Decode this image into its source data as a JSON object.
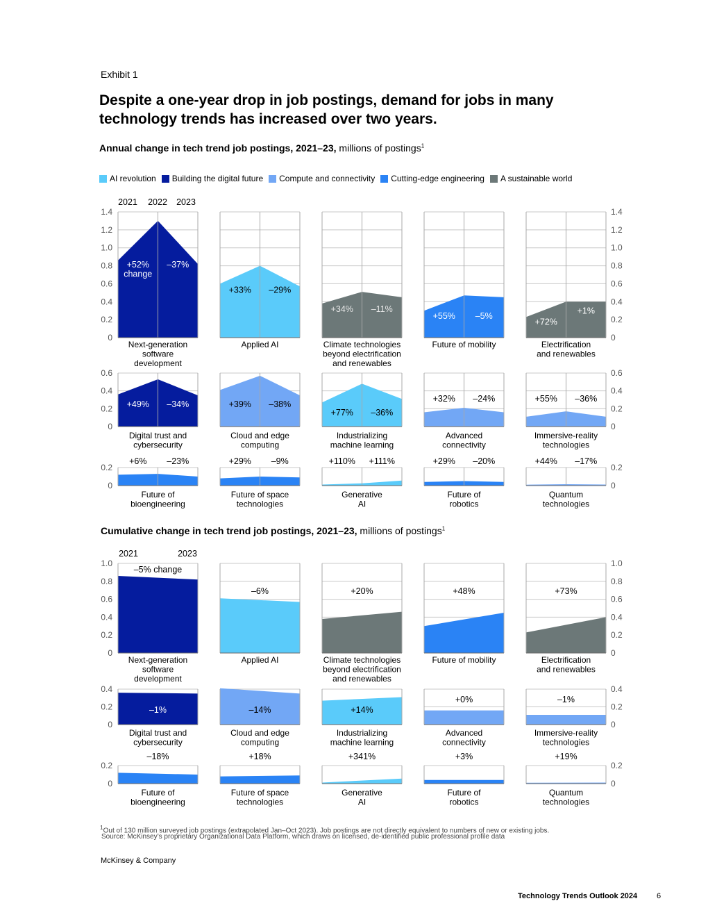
{
  "exhibit_label": "Exhibit 1",
  "headline": "Despite a one-year drop in job postings, demand for jobs in many technology trends has increased over two years.",
  "section1": {
    "title_bold": "Annual change in tech trend job postings, 2021–23,",
    "title_rest": " millions of postings",
    "sup": "1"
  },
  "section2": {
    "title_bold": "Cumulative change in tech trend job postings, 2021–23,",
    "title_rest": " millions of postings",
    "sup": "1"
  },
  "legend": [
    {
      "label": "AI revolution",
      "color": "#5ACBFA"
    },
    {
      "label": "Building the digital future",
      "color": "#051C9E"
    },
    {
      "label": "Compute and connectivity",
      "color": "#72A7F5"
    },
    {
      "label": "Cutting-edge engineering",
      "color": "#2A83F5"
    },
    {
      "label": "A sustainable world",
      "color": "#6C7878"
    }
  ],
  "colors": {
    "building": "#051C9E",
    "ai": "#5ACBFA",
    "compute": "#72A7F5",
    "engineering": "#2A83F5",
    "sustainable": "#6C7878"
  },
  "chart_data": [
    {
      "type": "area",
      "title": "Annual change in tech trend job postings, 2021–23, millions of postings",
      "x": [
        "2021",
        "2022",
        "2023"
      ],
      "rows": [
        {
          "ylim": [
            0,
            1.4
          ],
          "yticks": [
            "0",
            "0.2",
            "0.4",
            "0.6",
            "0.8",
            "1.0",
            "1.2",
            "1.4"
          ],
          "ytick_values": [
            0,
            0.2,
            0.4,
            0.6,
            0.8,
            1.0,
            1.2,
            1.4
          ],
          "panels": [
            {
              "name": "Next-generation\nsoftware\ndevelopment",
              "group": "building",
              "values": [
                0.86,
                1.3,
                0.82
              ],
              "changes": [
                "+52%\nchange",
                "–37%"
              ]
            },
            {
              "name": "Applied AI",
              "group": "ai",
              "values": [
                0.6,
                0.8,
                0.57
              ],
              "changes": [
                "+33%",
                "–29%"
              ]
            },
            {
              "name": "Climate technologies\nbeyond electrification\nand renewables",
              "group": "sustainable",
              "values": [
                0.38,
                0.51,
                0.45
              ],
              "changes": [
                "+34%",
                "–11%"
              ]
            },
            {
              "name": "Future of mobility",
              "group": "engineering",
              "values": [
                0.3,
                0.47,
                0.45
              ],
              "changes": [
                "+55%",
                "–5%"
              ]
            },
            {
              "name": "Electrification\nand renewables",
              "group": "sustainable",
              "values": [
                0.23,
                0.4,
                0.4
              ],
              "changes": [
                "+72%",
                "+1%"
              ]
            }
          ]
        },
        {
          "ylim": [
            0,
            0.6
          ],
          "yticks": [
            "0",
            "0.2",
            "0.4",
            "0.6"
          ],
          "ytick_values": [
            0,
            0.2,
            0.4,
            0.6
          ],
          "panels": [
            {
              "name": "Digital trust and\ncybersecurity",
              "group": "building",
              "values": [
                0.36,
                0.53,
                0.35
              ],
              "changes": [
                "+49%",
                "–34%"
              ]
            },
            {
              "name": "Cloud and edge\ncomputing",
              "group": "compute",
              "values": [
                0.41,
                0.57,
                0.35
              ],
              "changes": [
                "+39%",
                "–38%"
              ]
            },
            {
              "name": "Industrializing\nmachine learning",
              "group": "ai",
              "values": [
                0.27,
                0.48,
                0.31
              ],
              "changes": [
                "+77%",
                "–36%"
              ]
            },
            {
              "name": "Advanced\nconnectivity",
              "group": "compute",
              "values": [
                0.16,
                0.21,
                0.16
              ],
              "changes": [
                "+32%",
                "–24%"
              ]
            },
            {
              "name": "Immersive-reality\ntechnologies",
              "group": "compute",
              "values": [
                0.11,
                0.17,
                0.11
              ],
              "changes": [
                "+55%",
                "–36%"
              ]
            }
          ]
        },
        {
          "ylim": [
            0,
            0.2
          ],
          "yticks": [
            "0",
            "0.2"
          ],
          "ytick_values": [
            0,
            0.2
          ],
          "panels": [
            {
              "name": "Future of\nbioengineering",
              "group": "engineering",
              "values": [
                0.12,
                0.13,
                0.1
              ],
              "changes": [
                "+6%",
                "–23%"
              ]
            },
            {
              "name": "Future of space\ntechnologies",
              "group": "engineering",
              "values": [
                0.08,
                0.1,
                0.09
              ],
              "changes": [
                "+29%",
                "–9%"
              ]
            },
            {
              "name": "Generative\nAI",
              "group": "ai",
              "values": [
                0.012,
                0.025,
                0.056
              ],
              "changes": [
                "+110%",
                "+111%"
              ]
            },
            {
              "name": "Future of\nrobotics",
              "group": "engineering",
              "values": [
                0.04,
                0.05,
                0.04
              ],
              "changes": [
                "+29%",
                "–20%"
              ]
            },
            {
              "name": "Quantum\ntechnologies",
              "group": "compute",
              "values": [
                0.01,
                0.015,
                0.012
              ],
              "changes": [
                "+44%",
                "–17%"
              ]
            }
          ]
        }
      ]
    },
    {
      "type": "area",
      "title": "Cumulative change in tech trend job postings, 2021–23, millions of postings",
      "x": [
        "2021",
        "2023"
      ],
      "rows": [
        {
          "ylim": [
            0,
            1.0
          ],
          "yticks": [
            "0",
            "0.2",
            "0.4",
            "0.6",
            "0.8",
            "1.0"
          ],
          "ytick_values": [
            0,
            0.2,
            0.4,
            0.6,
            0.8,
            1.0
          ],
          "panels": [
            {
              "name": "Next-generation\nsoftware\ndevelopment",
              "group": "building",
              "values": [
                0.86,
                0.82
              ],
              "changes": [
                "–5% change"
              ]
            },
            {
              "name": "Applied AI",
              "group": "ai",
              "values": [
                0.61,
                0.57
              ],
              "changes": [
                "–6%"
              ]
            },
            {
              "name": "Climate technologies\nbeyond electrification\nand renewables",
              "group": "sustainable",
              "values": [
                0.38,
                0.46
              ],
              "changes": [
                "+20%"
              ]
            },
            {
              "name": "Future of mobility",
              "group": "engineering",
              "values": [
                0.3,
                0.45
              ],
              "changes": [
                "+48%"
              ]
            },
            {
              "name": "Electrification\nand renewables",
              "group": "sustainable",
              "values": [
                0.23,
                0.4
              ],
              "changes": [
                "+73%"
              ]
            }
          ]
        },
        {
          "ylim": [
            0,
            0.4
          ],
          "yticks": [
            "0",
            "0.2",
            "0.4"
          ],
          "ytick_values": [
            0,
            0.2,
            0.4
          ],
          "panels": [
            {
              "name": "Digital trust and\ncybersecurity",
              "group": "building",
              "values": [
                0.36,
                0.35
              ],
              "changes": [
                "–1%"
              ]
            },
            {
              "name": "Cloud and edge\ncomputing",
              "group": "compute",
              "values": [
                0.41,
                0.35
              ],
              "changes": [
                "–14%"
              ]
            },
            {
              "name": "Industrializing\nmachine learning",
              "group": "ai",
              "values": [
                0.27,
                0.31
              ],
              "changes": [
                "+14%"
              ]
            },
            {
              "name": "Advanced\nconnectivity",
              "group": "compute",
              "values": [
                0.16,
                0.16
              ],
              "changes": [
                "+0%"
              ]
            },
            {
              "name": "Immersive-reality\ntechnologies",
              "group": "compute",
              "values": [
                0.11,
                0.11
              ],
              "changes": [
                "–1%"
              ]
            }
          ]
        },
        {
          "ylim": [
            0,
            0.2
          ],
          "yticks": [
            "0",
            "0.2"
          ],
          "ytick_values": [
            0,
            0.2
          ],
          "panels": [
            {
              "name": "Future of\nbioengineering",
              "group": "engineering",
              "values": [
                0.12,
                0.1
              ],
              "changes": [
                "–18%"
              ]
            },
            {
              "name": "Future of space\ntechnologies",
              "group": "engineering",
              "values": [
                0.08,
                0.09
              ],
              "changes": [
                "+18%"
              ]
            },
            {
              "name": "Generative\nAI",
              "group": "ai",
              "values": [
                0.012,
                0.056
              ],
              "changes": [
                "+341%"
              ]
            },
            {
              "name": "Future of\nrobotics",
              "group": "engineering",
              "values": [
                0.04,
                0.04
              ],
              "changes": [
                "+3%"
              ]
            },
            {
              "name": "Quantum\ntechnologies",
              "group": "compute",
              "values": [
                0.01,
                0.012
              ],
              "changes": [
                "+19%"
              ]
            }
          ]
        }
      ]
    }
  ],
  "footnote": "Out of 130 million surveyed job postings (extrapolated Jan–Oct 2023). Job postings are not directly equivalent to numbers of new or existing jobs.",
  "footnote_mark": "1",
  "source": "Source: McKinsey’s proprietary Organizational Data Platform, which draws on licensed, de-identified public professional profile data",
  "brand": "McKinsey & Company",
  "report_title": "Technology Trends Outlook 2024",
  "page_number": "6"
}
